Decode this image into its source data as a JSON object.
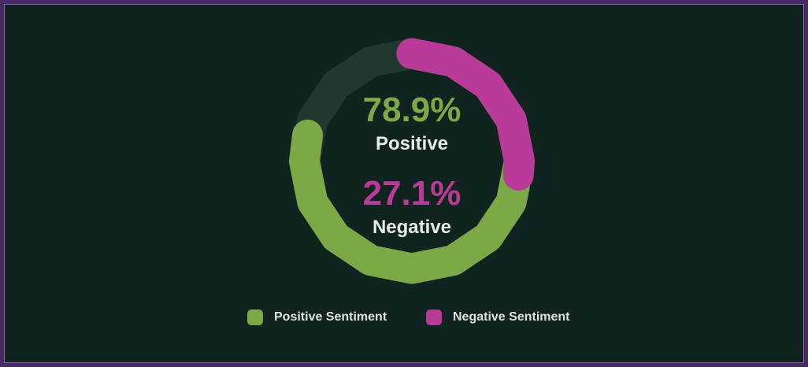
{
  "card": {
    "background": "#11231e",
    "border_color": "#472a63",
    "border_highlight_color": "#8066a8"
  },
  "chart_data": {
    "type": "pie",
    "variant": "donut-gauge-overlay",
    "start_angle_deg": 0,
    "direction": "clockwise",
    "track_color": "#233731",
    "center_label_color": "#e8ecec",
    "legend_position": "bottom",
    "series": [
      {
        "name": "Positive Sentiment",
        "label": "Positive",
        "value_pct": 78.9,
        "display": "78.9%",
        "color": "#7ca845"
      },
      {
        "name": "Negative Sentiment",
        "label": "Negative",
        "value_pct": 27.1,
        "display": "27.1%",
        "color": "#b93a99"
      }
    ]
  }
}
